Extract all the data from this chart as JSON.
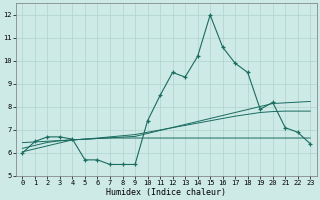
{
  "xlabel": "Humidex (Indice chaleur)",
  "background_color": "#ceeae6",
  "grid_color": "#afd4cf",
  "line_color": "#1a6b60",
  "x_data": [
    0,
    1,
    2,
    3,
    4,
    5,
    6,
    7,
    8,
    9,
    10,
    11,
    12,
    13,
    14,
    15,
    16,
    17,
    18,
    19,
    20,
    21,
    22,
    23
  ],
  "y_main": [
    6.0,
    6.5,
    6.7,
    6.7,
    6.6,
    5.7,
    5.7,
    5.5,
    5.5,
    5.5,
    7.4,
    8.5,
    9.5,
    9.3,
    10.2,
    12.0,
    10.6,
    9.9,
    9.5,
    7.9,
    8.2,
    7.1,
    6.9,
    6.4
  ],
  "y_line1": [
    6.05,
    6.18,
    6.31,
    6.44,
    6.57,
    6.6,
    6.63,
    6.66,
    6.69,
    6.72,
    6.85,
    6.98,
    7.11,
    7.24,
    7.37,
    7.5,
    7.63,
    7.76,
    7.89,
    8.02,
    8.15,
    8.18,
    8.21,
    8.24
  ],
  "y_line2": [
    6.45,
    6.48,
    6.51,
    6.54,
    6.57,
    6.6,
    6.63,
    6.65,
    6.65,
    6.65,
    6.65,
    6.65,
    6.65,
    6.65,
    6.65,
    6.65,
    6.65,
    6.65,
    6.65,
    6.65,
    6.65,
    6.65,
    6.65,
    6.65
  ],
  "y_line3": [
    6.2,
    6.33,
    6.46,
    6.53,
    6.57,
    6.6,
    6.65,
    6.7,
    6.75,
    6.8,
    6.9,
    7.0,
    7.1,
    7.2,
    7.3,
    7.4,
    7.5,
    7.6,
    7.68,
    7.76,
    7.8,
    7.82,
    7.82,
    7.82
  ],
  "ylim": [
    5.0,
    12.5
  ],
  "xlim": [
    -0.5,
    23.5
  ],
  "yticks": [
    5,
    6,
    7,
    8,
    9,
    10,
    11,
    12
  ],
  "xticks": [
    0,
    1,
    2,
    3,
    4,
    5,
    6,
    7,
    8,
    9,
    10,
    11,
    12,
    13,
    14,
    15,
    16,
    17,
    18,
    19,
    20,
    21,
    22,
    23
  ],
  "xlabel_fontsize": 6,
  "tick_fontsize": 5
}
